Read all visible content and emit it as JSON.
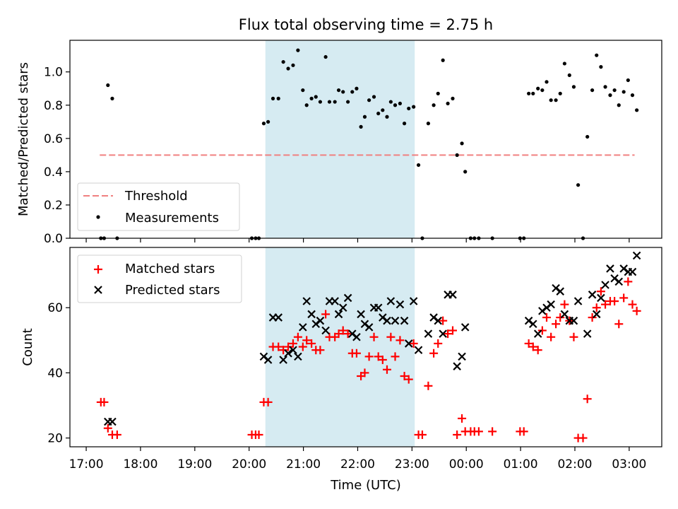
{
  "figure_title": "Flux total observing time = 2.75 h",
  "colors": {
    "threshold": "#f08080",
    "measurements": "#000000",
    "matched": "#ff0000",
    "predicted": "#000000",
    "shaded": "#add8e6"
  },
  "chart_data": [
    {
      "type": "scatter",
      "title": "Flux total observing time = 2.75 h",
      "xlabel": "",
      "ylabel": "Matched/Predicted stars",
      "xlim": [
        16.7,
        27.6
      ],
      "ylim": [
        0,
        1.19
      ],
      "x_unit": "hours since 00:00 UTC of first night (24 = 00:00 next day)",
      "yticks": [
        0.0,
        0.2,
        0.4,
        0.6,
        0.8,
        1.0
      ],
      "ytick_labels": [
        "0.0",
        "0.2",
        "0.4",
        "0.6",
        "0.8",
        "1.0"
      ],
      "legend_position": "lower-left",
      "shaded_region": [
        20.3,
        23.05
      ],
      "threshold": {
        "name": "Threshold",
        "y": 0.5,
        "x": [
          17.25,
          27.1
        ],
        "style": "dashed"
      },
      "series": [
        {
          "name": "Measurements",
          "points": [
            [
              17.27,
              0
            ],
            [
              17.33,
              0
            ],
            [
              17.4,
              0.92
            ],
            [
              17.48,
              0.84
            ],
            [
              17.57,
              0
            ],
            [
              20.05,
              0
            ],
            [
              20.12,
              0
            ],
            [
              20.18,
              0
            ],
            [
              20.27,
              0.69
            ],
            [
              20.35,
              0.7
            ],
            [
              20.44,
              0.84
            ],
            [
              20.54,
              0.84
            ],
            [
              20.63,
              1.06
            ],
            [
              20.72,
              1.02
            ],
            [
              20.81,
              1.04
            ],
            [
              20.9,
              1.13
            ],
            [
              20.99,
              0.89
            ],
            [
              21.06,
              0.8
            ],
            [
              21.15,
              0.84
            ],
            [
              21.23,
              0.85
            ],
            [
              21.31,
              0.82
            ],
            [
              21.41,
              1.09
            ],
            [
              21.48,
              0.82
            ],
            [
              21.58,
              0.82
            ],
            [
              21.65,
              0.89
            ],
            [
              21.73,
              0.88
            ],
            [
              21.82,
              0.82
            ],
            [
              21.9,
              0.88
            ],
            [
              21.98,
              0.9
            ],
            [
              22.06,
              0.67
            ],
            [
              22.13,
              0.73
            ],
            [
              22.21,
              0.83
            ],
            [
              22.3,
              0.85
            ],
            [
              22.38,
              0.75
            ],
            [
              22.46,
              0.77
            ],
            [
              22.54,
              0.73
            ],
            [
              22.61,
              0.82
            ],
            [
              22.69,
              0.8
            ],
            [
              22.78,
              0.81
            ],
            [
              22.86,
              0.69
            ],
            [
              22.94,
              0.78
            ],
            [
              23.03,
              0.79
            ],
            [
              23.12,
              0.44
            ],
            [
              23.19,
              0
            ],
            [
              23.3,
              0.69
            ],
            [
              23.4,
              0.8
            ],
            [
              23.48,
              0.87
            ],
            [
              23.57,
              1.07
            ],
            [
              23.66,
              0.81
            ],
            [
              23.75,
              0.84
            ],
            [
              23.83,
              0.5
            ],
            [
              23.92,
              0.57
            ],
            [
              23.98,
              0.4
            ],
            [
              24.08,
              0
            ],
            [
              24.15,
              0
            ],
            [
              24.23,
              0
            ],
            [
              24.48,
              0
            ],
            [
              24.99,
              0
            ],
            [
              25.06,
              0
            ],
            [
              25.15,
              0.87
            ],
            [
              25.23,
              0.87
            ],
            [
              25.32,
              0.9
            ],
            [
              25.4,
              0.89
            ],
            [
              25.48,
              0.94
            ],
            [
              25.56,
              0.83
            ],
            [
              25.65,
              0.83
            ],
            [
              25.73,
              0.87
            ],
            [
              25.81,
              1.05
            ],
            [
              25.9,
              0.98
            ],
            [
              25.98,
              0.91
            ],
            [
              26.06,
              0.32
            ],
            [
              26.15,
              0
            ],
            [
              26.23,
              0.61
            ],
            [
              26.32,
              0.89
            ],
            [
              26.4,
              1.1
            ],
            [
              26.48,
              1.03
            ],
            [
              26.56,
              0.91
            ],
            [
              26.65,
              0.86
            ],
            [
              26.73,
              0.89
            ],
            [
              26.81,
              0.8
            ],
            [
              26.9,
              0.88
            ],
            [
              26.98,
              0.95
            ],
            [
              27.06,
              0.86
            ],
            [
              27.14,
              0.77
            ]
          ]
        }
      ]
    },
    {
      "type": "scatter",
      "xlabel": "Time (UTC)",
      "ylabel": "Count",
      "xlim": [
        16.7,
        27.6
      ],
      "ylim": [
        17.3,
        78.5
      ],
      "x_unit": "hours since 00:00 UTC of first night (24 = 00:00 next day)",
      "xticks": [
        17,
        18,
        19,
        20,
        21,
        22,
        23,
        24,
        25,
        26,
        27
      ],
      "xtick_labels": [
        "17:00",
        "18:00",
        "19:00",
        "20:00",
        "21:00",
        "22:00",
        "23:00",
        "00:00",
        "01:00",
        "02:00",
        "03:00"
      ],
      "yticks": [
        20,
        40,
        60
      ],
      "ytick_labels": [
        "20",
        "40",
        "60"
      ],
      "legend_position": "upper-left",
      "shaded_region": [
        20.3,
        23.05
      ],
      "series": [
        {
          "name": "Matched stars",
          "marker": "+",
          "points": [
            [
              17.27,
              31
            ],
            [
              17.33,
              31
            ],
            [
              17.4,
              23
            ],
            [
              17.48,
              21
            ],
            [
              17.57,
              21
            ],
            [
              20.05,
              21
            ],
            [
              20.12,
              21
            ],
            [
              20.18,
              21
            ],
            [
              20.27,
              31
            ],
            [
              20.35,
              31
            ],
            [
              20.44,
              48
            ],
            [
              20.54,
              48
            ],
            [
              20.63,
              47
            ],
            [
              20.72,
              48
            ],
            [
              20.81,
              49
            ],
            [
              20.9,
              51
            ],
            [
              20.99,
              48
            ],
            [
              21.06,
              50
            ],
            [
              21.15,
              49
            ],
            [
              21.23,
              47
            ],
            [
              21.31,
              47
            ],
            [
              21.41,
              58
            ],
            [
              21.48,
              51
            ],
            [
              21.58,
              51
            ],
            [
              21.65,
              52
            ],
            [
              21.73,
              53
            ],
            [
              21.82,
              52
            ],
            [
              21.9,
              46
            ],
            [
              21.98,
              46
            ],
            [
              22.06,
              39
            ],
            [
              22.13,
              40
            ],
            [
              22.21,
              45
            ],
            [
              22.3,
              51
            ],
            [
              22.38,
              45
            ],
            [
              22.46,
              44
            ],
            [
              22.54,
              41
            ],
            [
              22.61,
              51
            ],
            [
              22.69,
              45
            ],
            [
              22.78,
              50
            ],
            [
              22.86,
              39
            ],
            [
              22.94,
              38
            ],
            [
              23.03,
              49
            ],
            [
              23.12,
              21
            ],
            [
              23.19,
              21
            ],
            [
              23.3,
              36
            ],
            [
              23.4,
              46
            ],
            [
              23.48,
              49
            ],
            [
              23.57,
              56
            ],
            [
              23.66,
              52
            ],
            [
              23.75,
              53
            ],
            [
              23.83,
              21
            ],
            [
              23.92,
              26
            ],
            [
              23.98,
              22
            ],
            [
              24.08,
              22
            ],
            [
              24.15,
              22
            ],
            [
              24.23,
              22
            ],
            [
              24.48,
              22
            ],
            [
              24.99,
              22
            ],
            [
              25.06,
              22
            ],
            [
              25.15,
              49
            ],
            [
              25.23,
              48
            ],
            [
              25.32,
              47
            ],
            [
              25.4,
              53
            ],
            [
              25.48,
              57
            ],
            [
              25.56,
              51
            ],
            [
              25.65,
              55
            ],
            [
              25.73,
              57
            ],
            [
              25.81,
              61
            ],
            [
              25.9,
              56
            ],
            [
              25.98,
              51
            ],
            [
              26.06,
              20
            ],
            [
              26.15,
              20
            ],
            [
              26.23,
              32
            ],
            [
              26.32,
              57
            ],
            [
              26.4,
              60
            ],
            [
              26.48,
              65
            ],
            [
              26.56,
              61
            ],
            [
              26.65,
              62
            ],
            [
              26.73,
              62
            ],
            [
              26.81,
              55
            ],
            [
              26.9,
              63
            ],
            [
              26.98,
              68
            ],
            [
              27.06,
              61
            ],
            [
              27.14,
              59
            ]
          ]
        },
        {
          "name": "Predicted stars",
          "marker": "x",
          "points": [
            [
              17.4,
              25
            ],
            [
              17.48,
              25
            ],
            [
              20.27,
              45
            ],
            [
              20.35,
              44
            ],
            [
              20.44,
              57
            ],
            [
              20.54,
              57
            ],
            [
              20.63,
              44
            ],
            [
              20.72,
              46
            ],
            [
              20.81,
              47
            ],
            [
              20.9,
              45
            ],
            [
              20.99,
              54
            ],
            [
              21.06,
              62
            ],
            [
              21.15,
              58
            ],
            [
              21.23,
              55
            ],
            [
              21.31,
              56
            ],
            [
              21.41,
              53
            ],
            [
              21.48,
              62
            ],
            [
              21.58,
              62
            ],
            [
              21.65,
              58
            ],
            [
              21.73,
              60
            ],
            [
              21.82,
              63
            ],
            [
              21.9,
              52
            ],
            [
              21.98,
              51
            ],
            [
              22.06,
              58
            ],
            [
              22.13,
              55
            ],
            [
              22.21,
              54
            ],
            [
              22.3,
              60
            ],
            [
              22.38,
              60
            ],
            [
              22.46,
              57
            ],
            [
              22.54,
              56
            ],
            [
              22.61,
              62
            ],
            [
              22.69,
              56
            ],
            [
              22.78,
              61
            ],
            [
              22.86,
              56
            ],
            [
              22.94,
              49
            ],
            [
              23.03,
              62
            ],
            [
              23.12,
              47
            ],
            [
              23.3,
              52
            ],
            [
              23.4,
              57
            ],
            [
              23.48,
              56
            ],
            [
              23.57,
              52
            ],
            [
              23.66,
              64
            ],
            [
              23.75,
              64
            ],
            [
              23.83,
              42
            ],
            [
              23.92,
              45
            ],
            [
              23.98,
              54
            ],
            [
              25.15,
              56
            ],
            [
              25.23,
              55
            ],
            [
              25.32,
              52
            ],
            [
              25.4,
              59
            ],
            [
              25.48,
              60
            ],
            [
              25.56,
              61
            ],
            [
              25.65,
              66
            ],
            [
              25.73,
              65
            ],
            [
              25.81,
              58
            ],
            [
              25.9,
              56
            ],
            [
              25.98,
              56
            ],
            [
              26.06,
              62
            ],
            [
              26.23,
              52
            ],
            [
              26.32,
              64
            ],
            [
              26.4,
              58
            ],
            [
              26.48,
              63
            ],
            [
              26.56,
              67
            ],
            [
              26.65,
              72
            ],
            [
              26.73,
              69
            ],
            [
              26.81,
              68
            ],
            [
              26.9,
              72
            ],
            [
              26.98,
              71
            ],
            [
              27.06,
              71
            ],
            [
              27.14,
              76
            ]
          ]
        }
      ]
    }
  ]
}
